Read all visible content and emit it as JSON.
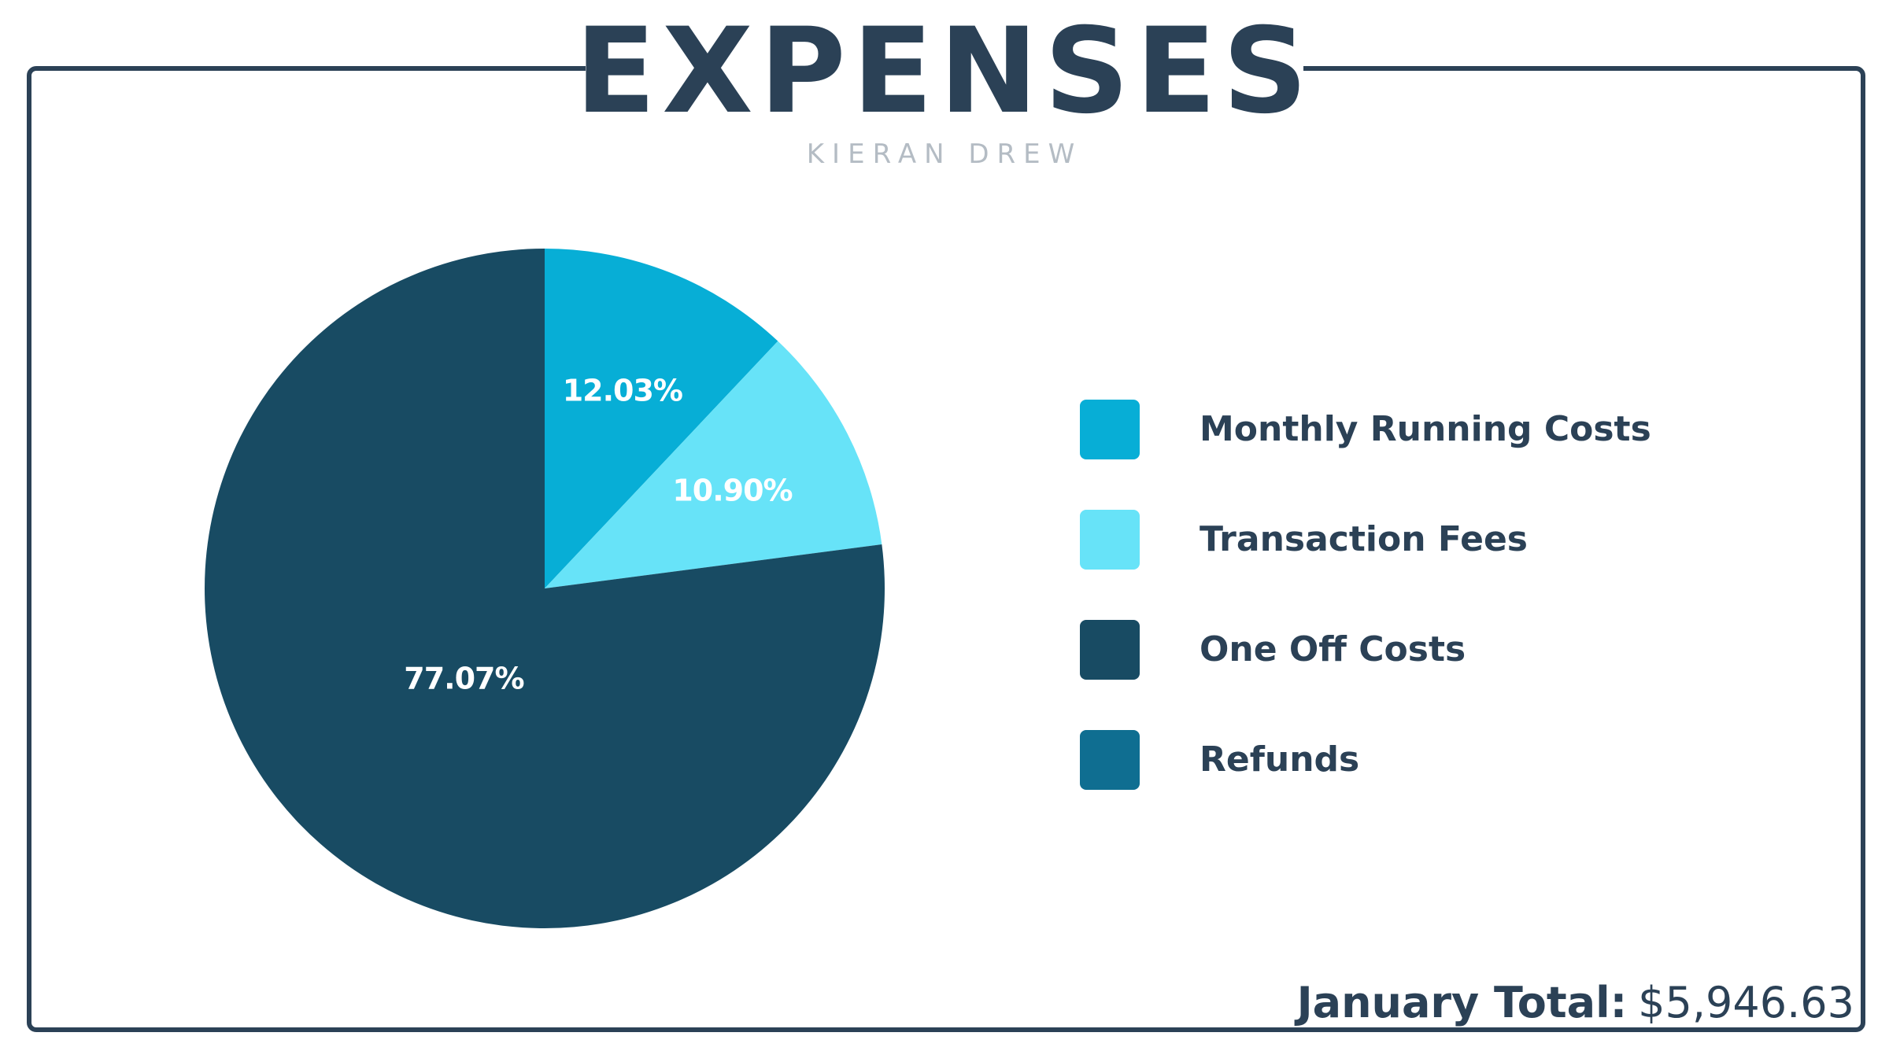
{
  "header": {
    "title": "EXPENSES",
    "subtitle": "KIERAN DREW"
  },
  "chart_data": {
    "type": "pie",
    "title": "EXPENSES",
    "start": "12 o'clock",
    "direction": "clockwise",
    "slices": [
      {
        "label": "Monthly Running Costs",
        "value": 12.03,
        "display": "12.03%",
        "color": "#07aed6"
      },
      {
        "label": "Transaction Fees",
        "value": 10.9,
        "display": "10.90%",
        "color": "#67e3f8"
      },
      {
        "label": "One Off Costs",
        "value": 77.07,
        "display": "77.07%",
        "color": "#184b63"
      },
      {
        "label": "Refunds",
        "value": 0,
        "display": "",
        "color": "#0f6e91"
      }
    ],
    "legend_position": "right"
  },
  "legend": {
    "items": [
      {
        "label": "Monthly Running Costs",
        "color": "#07aed6"
      },
      {
        "label": "Transaction Fees",
        "color": "#67e3f8"
      },
      {
        "label": "One Off Costs",
        "color": "#184b63"
      },
      {
        "label": "Refunds",
        "color": "#0f6e91"
      }
    ]
  },
  "footer": {
    "total_label": "January Total:",
    "total_value": "$5,946.63"
  },
  "colors": {
    "text_dark": "#2b4156",
    "subtitle_gray": "#b4bcc4",
    "background": "#ffffff"
  }
}
